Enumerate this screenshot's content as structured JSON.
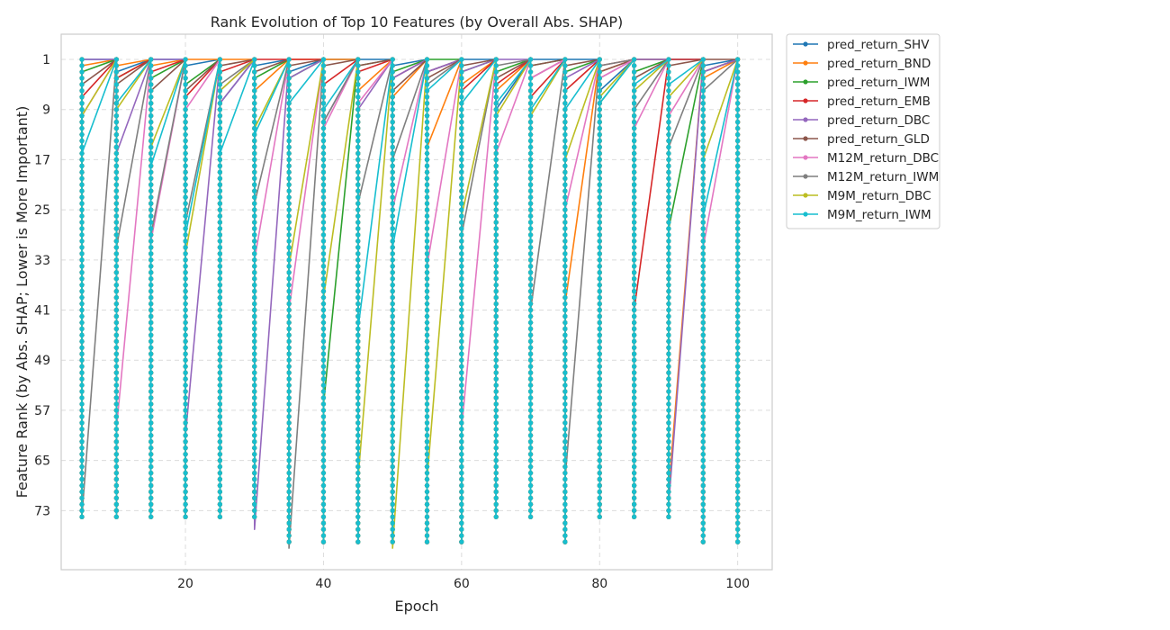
{
  "chart_data": {
    "type": "line",
    "title": "Rank Evolution of Top 10 Features (by Overall Abs. SHAP)",
    "xlabel": "Epoch",
    "ylabel": "Feature Rank (by Abs. SHAP; Lower is More Important)",
    "xlim": [
      2,
      105
    ],
    "ylim": [
      1,
      82
    ],
    "y_inverted": true,
    "xticks": [
      20,
      40,
      60,
      80,
      100
    ],
    "yticks": [
      1,
      9,
      17,
      25,
      33,
      41,
      49,
      57,
      65,
      73
    ],
    "grid": true,
    "legend_position": "outside-top-right",
    "x": [
      5,
      10,
      15,
      20,
      25,
      30,
      35,
      40,
      45,
      50,
      55,
      60,
      65,
      70,
      75,
      80,
      85,
      90,
      95,
      100
    ],
    "series": [
      {
        "name": "pred_return_SHV",
        "color": "#1f77b4",
        "values": [
          1,
          3,
          1,
          2,
          8,
          2,
          3,
          1,
          1,
          2,
          3,
          1,
          9,
          1,
          1,
          6,
          1,
          1,
          2,
          3
        ],
        "spans": [
          [
            1,
            74
          ],
          [
            1,
            74
          ],
          [
            1,
            74
          ],
          [
            1,
            74
          ],
          [
            1,
            74
          ],
          [
            1,
            74
          ],
          [
            1,
            78
          ],
          [
            1,
            78
          ],
          [
            1,
            78
          ],
          [
            1,
            78
          ],
          [
            1,
            78
          ],
          [
            1,
            78
          ],
          [
            1,
            42
          ],
          [
            1,
            74
          ],
          [
            1,
            78
          ],
          [
            1,
            74
          ],
          [
            1,
            74
          ],
          [
            1,
            74
          ],
          [
            1,
            78
          ],
          [
            1,
            78
          ]
        ]
      },
      {
        "name": "pred_return_BND",
        "color": "#ff7f0e",
        "values": [
          2,
          2,
          2,
          1,
          1,
          6,
          1,
          1,
          6,
          7,
          15,
          5,
          6,
          4,
          40,
          3,
          1,
          70,
          4,
          3
        ],
        "spans": [
          [
            1,
            74
          ],
          [
            1,
            74
          ],
          [
            1,
            74
          ],
          [
            1,
            74
          ],
          [
            1,
            74
          ],
          [
            1,
            74
          ],
          [
            1,
            78
          ],
          [
            1,
            78
          ],
          [
            1,
            78
          ],
          [
            1,
            78
          ],
          [
            1,
            78
          ],
          [
            1,
            78
          ],
          [
            1,
            74
          ],
          [
            1,
            74
          ],
          [
            1,
            78
          ],
          [
            1,
            74
          ],
          [
            1,
            74
          ],
          [
            1,
            74
          ],
          [
            1,
            78
          ],
          [
            1,
            78
          ]
        ]
      },
      {
        "name": "pred_return_IWM",
        "color": "#2ca02c",
        "values": [
          3,
          4,
          4,
          5,
          6,
          4,
          4,
          56,
          2,
          3,
          1,
          3,
          3,
          2,
          3,
          8,
          3,
          28,
          3,
          2
        ],
        "spans": [
          [
            1,
            74
          ],
          [
            1,
            74
          ],
          [
            1,
            74
          ],
          [
            1,
            74
          ],
          [
            1,
            74
          ],
          [
            1,
            74
          ],
          [
            1,
            78
          ],
          [
            1,
            78
          ],
          [
            1,
            78
          ],
          [
            1,
            78
          ],
          [
            1,
            78
          ],
          [
            1,
            78
          ],
          [
            1,
            74
          ],
          [
            1,
            74
          ],
          [
            1,
            78
          ],
          [
            1,
            74
          ],
          [
            1,
            74
          ],
          [
            1,
            74
          ],
          [
            1,
            78
          ],
          [
            1,
            78
          ]
        ]
      },
      {
        "name": "pred_return_EMB",
        "color": "#d62728",
        "values": [
          7,
          4,
          3,
          7,
          3,
          1,
          1,
          5,
          3,
          4,
          3,
          6,
          5,
          7,
          6,
          2,
          41,
          1,
          3,
          5
        ],
        "spans": [
          [
            1,
            74
          ],
          [
            1,
            74
          ],
          [
            1,
            74
          ],
          [
            1,
            74
          ],
          [
            1,
            74
          ],
          [
            1,
            74
          ],
          [
            1,
            78
          ],
          [
            1,
            78
          ],
          [
            1,
            78
          ],
          [
            1,
            78
          ],
          [
            1,
            78
          ],
          [
            1,
            78
          ],
          [
            1,
            70
          ],
          [
            1,
            74
          ],
          [
            1,
            78
          ],
          [
            1,
            74
          ],
          [
            1,
            74
          ],
          [
            1,
            74
          ],
          [
            1,
            78
          ],
          [
            1,
            78
          ]
        ]
      },
      {
        "name": "pred_return_DBC",
        "color": "#9467bd",
        "values": [
          1,
          16,
          1,
          61,
          8,
          76,
          4,
          11,
          9,
          4,
          3,
          3,
          1,
          4,
          4,
          4,
          1,
          72,
          3,
          4
        ],
        "spans": [
          [
            1,
            74
          ],
          [
            1,
            74
          ],
          [
            1,
            74
          ],
          [
            1,
            74
          ],
          [
            1,
            74
          ],
          [
            1,
            74
          ],
          [
            1,
            78
          ],
          [
            1,
            78
          ],
          [
            1,
            78
          ],
          [
            1,
            78
          ],
          [
            1,
            78
          ],
          [
            1,
            78
          ],
          [
            1,
            74
          ],
          [
            1,
            74
          ],
          [
            1,
            78
          ],
          [
            1,
            74
          ],
          [
            1,
            74
          ],
          [
            1,
            74
          ],
          [
            1,
            78
          ],
          [
            1,
            78
          ]
        ]
      },
      {
        "name": "pred_return_GLD",
        "color": "#8c564b",
        "values": [
          5,
          5,
          6,
          6,
          2,
          3,
          2,
          2,
          2,
          6,
          4,
          2,
          4,
          2,
          2,
          3,
          4,
          2,
          1,
          4
        ],
        "spans": [
          [
            1,
            74
          ],
          [
            1,
            74
          ],
          [
            1,
            74
          ],
          [
            1,
            74
          ],
          [
            1,
            74
          ],
          [
            1,
            74
          ],
          [
            1,
            78
          ],
          [
            1,
            78
          ],
          [
            1,
            78
          ],
          [
            1,
            78
          ],
          [
            1,
            78
          ],
          [
            1,
            78
          ],
          [
            1,
            74
          ],
          [
            1,
            74
          ],
          [
            1,
            78
          ],
          [
            1,
            74
          ],
          [
            1,
            74
          ],
          [
            1,
            74
          ],
          [
            1,
            78
          ],
          [
            1,
            78
          ]
        ]
      },
      {
        "name": "M12M_return_DBC",
        "color": "#e377c2",
        "values": [
          10,
          60,
          30,
          9,
          6,
          33,
          41,
          12,
          8,
          25,
          34,
          60,
          16,
          4,
          25,
          4,
          12,
          10,
          31,
          14
        ],
        "spans": [
          [
            1,
            74
          ],
          [
            1,
            74
          ],
          [
            1,
            74
          ],
          [
            1,
            74
          ],
          [
            1,
            74
          ],
          [
            1,
            74
          ],
          [
            1,
            78
          ],
          [
            1,
            78
          ],
          [
            1,
            78
          ],
          [
            1,
            78
          ],
          [
            1,
            78
          ],
          [
            1,
            78
          ],
          [
            1,
            74
          ],
          [
            1,
            74
          ],
          [
            1,
            78
          ],
          [
            1,
            74
          ],
          [
            1,
            74
          ],
          [
            1,
            74
          ],
          [
            1,
            78
          ],
          [
            1,
            78
          ]
        ]
      },
      {
        "name": "M12M_return_IWM",
        "color": "#7f7f7f",
        "values": [
          74,
          31,
          29,
          27,
          5,
          24,
          79,
          11,
          24,
          17,
          5,
          29,
          2,
          41,
          68,
          2,
          9,
          15,
          6,
          8
        ],
        "spans": [
          [
            1,
            74
          ],
          [
            1,
            74
          ],
          [
            1,
            74
          ],
          [
            1,
            74
          ],
          [
            1,
            74
          ],
          [
            1,
            74
          ],
          [
            1,
            78
          ],
          [
            1,
            78
          ],
          [
            1,
            78
          ],
          [
            1,
            78
          ],
          [
            1,
            78
          ],
          [
            1,
            78
          ],
          [
            1,
            74
          ],
          [
            1,
            74
          ],
          [
            1,
            78
          ],
          [
            1,
            74
          ],
          [
            1,
            74
          ],
          [
            1,
            74
          ],
          [
            1,
            78
          ],
          [
            1,
            78
          ]
        ]
      },
      {
        "name": "M9M_return_DBC",
        "color": "#bcbd22",
        "values": [
          10,
          9,
          15,
          32,
          6,
          12,
          34,
          39,
          68,
          79,
          68,
          26,
          10,
          10,
          17,
          7,
          6,
          7,
          17,
          44
        ],
        "spans": [
          [
            1,
            74
          ],
          [
            1,
            74
          ],
          [
            1,
            74
          ],
          [
            1,
            74
          ],
          [
            1,
            74
          ],
          [
            1,
            74
          ],
          [
            1,
            78
          ],
          [
            1,
            78
          ],
          [
            1,
            78
          ],
          [
            1,
            78
          ],
          [
            1,
            78
          ],
          [
            1,
            78
          ],
          [
            1,
            74
          ],
          [
            1,
            74
          ],
          [
            1,
            78
          ],
          [
            1,
            74
          ],
          [
            1,
            74
          ],
          [
            1,
            74
          ],
          [
            1,
            78
          ],
          [
            1,
            78
          ]
        ]
      },
      {
        "name": "M9M_return_IWM",
        "color": "#17becf",
        "values": [
          16,
          8,
          18,
          29,
          16,
          13,
          8,
          9,
          44,
          31,
          6,
          8,
          8,
          9,
          9,
          8,
          5,
          5,
          26,
          11
        ],
        "spans": [
          [
            1,
            74
          ],
          [
            1,
            74
          ],
          [
            1,
            74
          ],
          [
            1,
            74
          ],
          [
            1,
            74
          ],
          [
            1,
            74
          ],
          [
            1,
            78
          ],
          [
            1,
            78
          ],
          [
            1,
            78
          ],
          [
            1,
            78
          ],
          [
            1,
            78
          ],
          [
            1,
            78
          ],
          [
            1,
            74
          ],
          [
            1,
            74
          ],
          [
            1,
            78
          ],
          [
            1,
            74
          ],
          [
            1,
            74
          ],
          [
            1,
            74
          ],
          [
            1,
            78
          ],
          [
            1,
            78
          ]
        ]
      }
    ]
  }
}
